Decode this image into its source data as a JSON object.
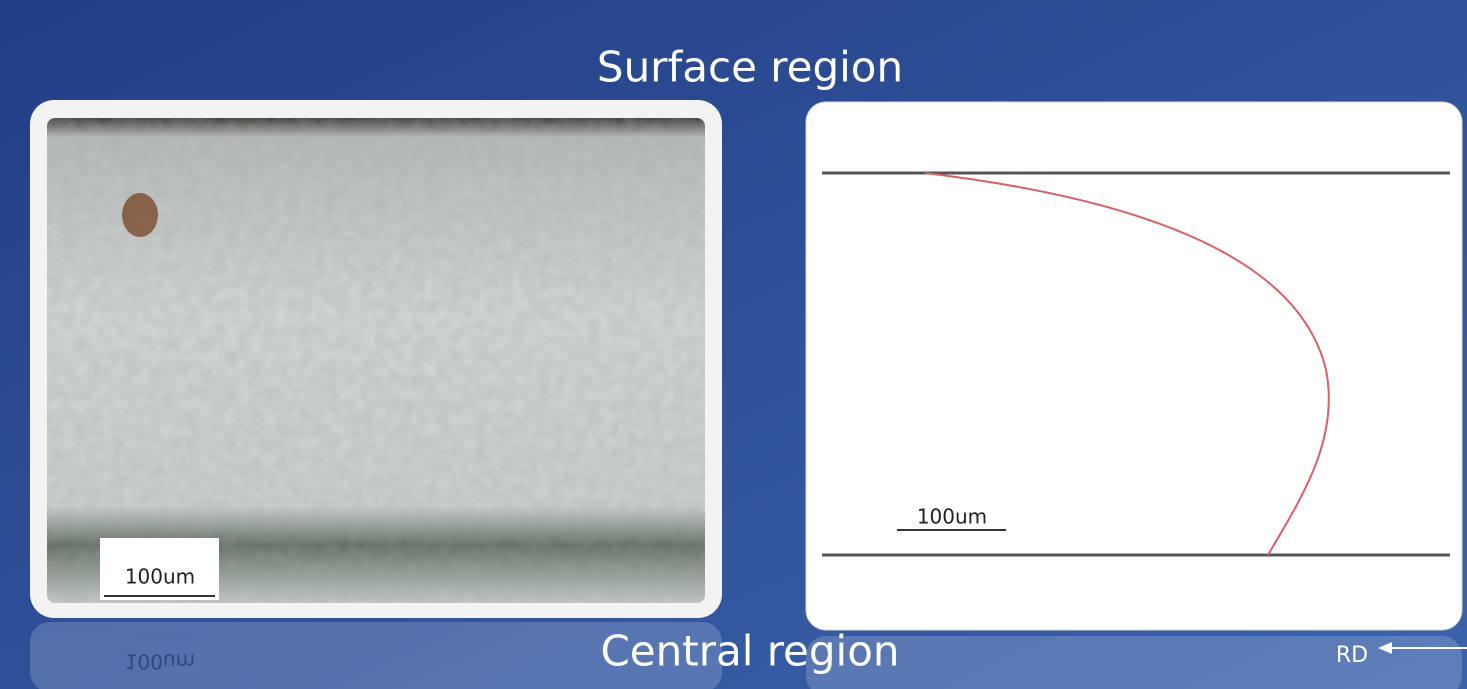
{
  "title": "Surface region",
  "footer": "Central region",
  "micrograph": {
    "scale_label": "100um"
  },
  "diagram": {
    "scale_label": "100um",
    "direction_label": "RD"
  }
}
